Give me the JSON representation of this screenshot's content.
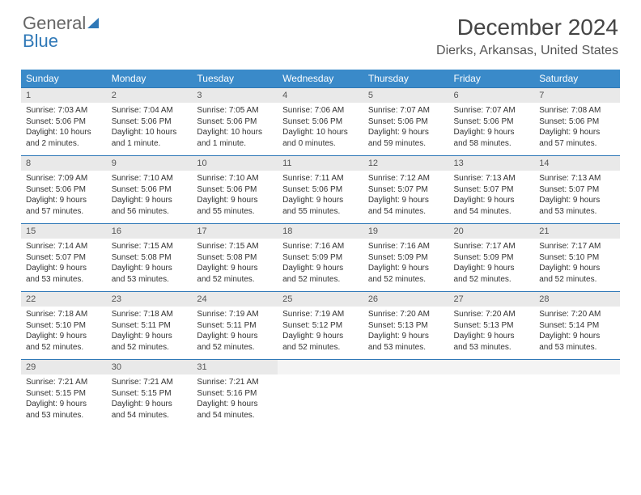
{
  "logo": {
    "text1": "General",
    "text2": "Blue"
  },
  "title": "December 2024",
  "location": "Dierks, Arkansas, United States",
  "colors": {
    "header_bg": "#3a8ac9",
    "header_text": "#ffffff",
    "border": "#2f78b7",
    "daynum_bg": "#e9e9e9",
    "text": "#333333",
    "logo_blue": "#2f78b7"
  },
  "weekdays": [
    "Sunday",
    "Monday",
    "Tuesday",
    "Wednesday",
    "Thursday",
    "Friday",
    "Saturday"
  ],
  "weeks": [
    [
      {
        "n": "1",
        "sr": "Sunrise: 7:03 AM",
        "ss": "Sunset: 5:06 PM",
        "dl": "Daylight: 10 hours and 2 minutes."
      },
      {
        "n": "2",
        "sr": "Sunrise: 7:04 AM",
        "ss": "Sunset: 5:06 PM",
        "dl": "Daylight: 10 hours and 1 minute."
      },
      {
        "n": "3",
        "sr": "Sunrise: 7:05 AM",
        "ss": "Sunset: 5:06 PM",
        "dl": "Daylight: 10 hours and 1 minute."
      },
      {
        "n": "4",
        "sr": "Sunrise: 7:06 AM",
        "ss": "Sunset: 5:06 PM",
        "dl": "Daylight: 10 hours and 0 minutes."
      },
      {
        "n": "5",
        "sr": "Sunrise: 7:07 AM",
        "ss": "Sunset: 5:06 PM",
        "dl": "Daylight: 9 hours and 59 minutes."
      },
      {
        "n": "6",
        "sr": "Sunrise: 7:07 AM",
        "ss": "Sunset: 5:06 PM",
        "dl": "Daylight: 9 hours and 58 minutes."
      },
      {
        "n": "7",
        "sr": "Sunrise: 7:08 AM",
        "ss": "Sunset: 5:06 PM",
        "dl": "Daylight: 9 hours and 57 minutes."
      }
    ],
    [
      {
        "n": "8",
        "sr": "Sunrise: 7:09 AM",
        "ss": "Sunset: 5:06 PM",
        "dl": "Daylight: 9 hours and 57 minutes."
      },
      {
        "n": "9",
        "sr": "Sunrise: 7:10 AM",
        "ss": "Sunset: 5:06 PM",
        "dl": "Daylight: 9 hours and 56 minutes."
      },
      {
        "n": "10",
        "sr": "Sunrise: 7:10 AM",
        "ss": "Sunset: 5:06 PM",
        "dl": "Daylight: 9 hours and 55 minutes."
      },
      {
        "n": "11",
        "sr": "Sunrise: 7:11 AM",
        "ss": "Sunset: 5:06 PM",
        "dl": "Daylight: 9 hours and 55 minutes."
      },
      {
        "n": "12",
        "sr": "Sunrise: 7:12 AM",
        "ss": "Sunset: 5:07 PM",
        "dl": "Daylight: 9 hours and 54 minutes."
      },
      {
        "n": "13",
        "sr": "Sunrise: 7:13 AM",
        "ss": "Sunset: 5:07 PM",
        "dl": "Daylight: 9 hours and 54 minutes."
      },
      {
        "n": "14",
        "sr": "Sunrise: 7:13 AM",
        "ss": "Sunset: 5:07 PM",
        "dl": "Daylight: 9 hours and 53 minutes."
      }
    ],
    [
      {
        "n": "15",
        "sr": "Sunrise: 7:14 AM",
        "ss": "Sunset: 5:07 PM",
        "dl": "Daylight: 9 hours and 53 minutes."
      },
      {
        "n": "16",
        "sr": "Sunrise: 7:15 AM",
        "ss": "Sunset: 5:08 PM",
        "dl": "Daylight: 9 hours and 53 minutes."
      },
      {
        "n": "17",
        "sr": "Sunrise: 7:15 AM",
        "ss": "Sunset: 5:08 PM",
        "dl": "Daylight: 9 hours and 52 minutes."
      },
      {
        "n": "18",
        "sr": "Sunrise: 7:16 AM",
        "ss": "Sunset: 5:09 PM",
        "dl": "Daylight: 9 hours and 52 minutes."
      },
      {
        "n": "19",
        "sr": "Sunrise: 7:16 AM",
        "ss": "Sunset: 5:09 PM",
        "dl": "Daylight: 9 hours and 52 minutes."
      },
      {
        "n": "20",
        "sr": "Sunrise: 7:17 AM",
        "ss": "Sunset: 5:09 PM",
        "dl": "Daylight: 9 hours and 52 minutes."
      },
      {
        "n": "21",
        "sr": "Sunrise: 7:17 AM",
        "ss": "Sunset: 5:10 PM",
        "dl": "Daylight: 9 hours and 52 minutes."
      }
    ],
    [
      {
        "n": "22",
        "sr": "Sunrise: 7:18 AM",
        "ss": "Sunset: 5:10 PM",
        "dl": "Daylight: 9 hours and 52 minutes."
      },
      {
        "n": "23",
        "sr": "Sunrise: 7:18 AM",
        "ss": "Sunset: 5:11 PM",
        "dl": "Daylight: 9 hours and 52 minutes."
      },
      {
        "n": "24",
        "sr": "Sunrise: 7:19 AM",
        "ss": "Sunset: 5:11 PM",
        "dl": "Daylight: 9 hours and 52 minutes."
      },
      {
        "n": "25",
        "sr": "Sunrise: 7:19 AM",
        "ss": "Sunset: 5:12 PM",
        "dl": "Daylight: 9 hours and 52 minutes."
      },
      {
        "n": "26",
        "sr": "Sunrise: 7:20 AM",
        "ss": "Sunset: 5:13 PM",
        "dl": "Daylight: 9 hours and 53 minutes."
      },
      {
        "n": "27",
        "sr": "Sunrise: 7:20 AM",
        "ss": "Sunset: 5:13 PM",
        "dl": "Daylight: 9 hours and 53 minutes."
      },
      {
        "n": "28",
        "sr": "Sunrise: 7:20 AM",
        "ss": "Sunset: 5:14 PM",
        "dl": "Daylight: 9 hours and 53 minutes."
      }
    ],
    [
      {
        "n": "29",
        "sr": "Sunrise: 7:21 AM",
        "ss": "Sunset: 5:15 PM",
        "dl": "Daylight: 9 hours and 53 minutes."
      },
      {
        "n": "30",
        "sr": "Sunrise: 7:21 AM",
        "ss": "Sunset: 5:15 PM",
        "dl": "Daylight: 9 hours and 54 minutes."
      },
      {
        "n": "31",
        "sr": "Sunrise: 7:21 AM",
        "ss": "Sunset: 5:16 PM",
        "dl": "Daylight: 9 hours and 54 minutes."
      },
      {
        "empty": true
      },
      {
        "empty": true
      },
      {
        "empty": true
      },
      {
        "empty": true
      }
    ]
  ]
}
